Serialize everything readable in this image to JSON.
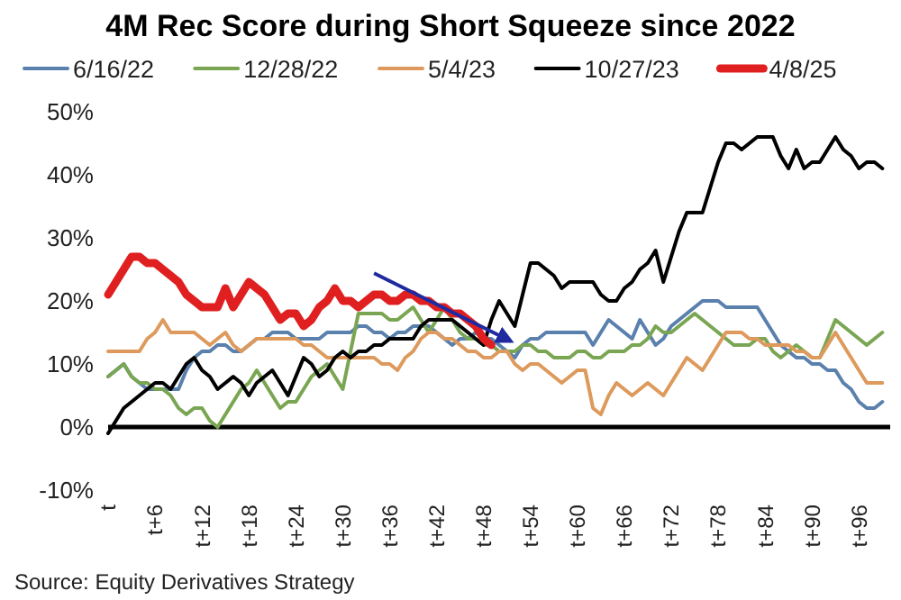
{
  "chart_data": {
    "type": "line",
    "title": "4M Rec Score during Short Squeeze since 2022",
    "annotations": [
      "Source: Equity Derivatives Strategy"
    ],
    "legend": "top",
    "grid": false,
    "ref_lines": [
      {
        "axis": "y",
        "value": 0,
        "color": "#000000"
      }
    ],
    "categories": [
      "t",
      null,
      null,
      null,
      null,
      null,
      "t+6",
      null,
      null,
      null,
      null,
      null,
      "t+12",
      null,
      null,
      null,
      null,
      null,
      "t+18",
      null,
      null,
      null,
      null,
      null,
      "t+24",
      null,
      null,
      null,
      null,
      null,
      "t+30",
      null,
      null,
      null,
      null,
      null,
      "t+36",
      null,
      null,
      null,
      null,
      null,
      "t+42",
      null,
      null,
      null,
      null,
      null,
      "t+48",
      null,
      null,
      null,
      null,
      null,
      "t+54",
      null,
      null,
      null,
      null,
      null,
      "t+60",
      null,
      null,
      null,
      null,
      null,
      "t+66",
      null,
      null,
      null,
      null,
      null,
      "t+72",
      null,
      null,
      null,
      null,
      null,
      "t+78",
      null,
      null,
      null,
      null,
      null,
      "t+84",
      null,
      null,
      null,
      null,
      null,
      "t+90",
      null,
      null,
      null,
      null,
      null,
      "t+96",
      null,
      null,
      null
    ],
    "ylim": [
      -10,
      50
    ],
    "yticks": [
      {
        "value": -10,
        "label": "-10%"
      },
      {
        "value": 0,
        "label": "0%"
      },
      {
        "value": 10,
        "label": "10%"
      },
      {
        "value": 20,
        "label": "20%"
      },
      {
        "value": 30,
        "label": "30%"
      },
      {
        "value": 40,
        "label": "40%"
      },
      {
        "value": 50,
        "label": "50%"
      }
    ],
    "series": [
      {
        "name": "6/16/22",
        "color": "#5a80ad",
        "values": [
          8,
          9,
          10,
          8,
          7,
          6,
          6,
          6,
          6,
          6,
          9,
          11,
          12,
          12,
          13,
          13,
          12,
          12,
          13,
          14,
          14,
          15,
          15,
          15,
          14,
          14,
          14,
          14,
          15,
          15,
          15,
          15,
          16,
          16,
          15,
          15,
          14,
          15,
          15,
          16,
          16,
          16,
          15,
          14,
          13,
          14,
          14,
          15,
          14,
          14,
          13,
          12,
          11,
          13,
          14,
          14,
          15,
          15,
          15,
          15,
          15,
          15,
          13,
          15,
          17,
          16,
          15,
          14,
          17,
          15,
          13,
          14,
          16,
          17,
          18,
          19,
          20,
          20,
          20,
          19,
          19,
          19,
          19,
          19,
          17,
          15,
          13,
          12,
          11,
          11,
          10,
          10,
          9,
          9,
          7,
          6,
          4,
          3,
          3,
          4
        ]
      },
      {
        "name": "12/28/22",
        "color": "#7aa653",
        "values": [
          8,
          9,
          10,
          8,
          7,
          7,
          6,
          6,
          5,
          3,
          2,
          3,
          3,
          1,
          0,
          2,
          4,
          6,
          7,
          9,
          7,
          5,
          3,
          4,
          4,
          6,
          8,
          9,
          10,
          8,
          6,
          12,
          18,
          18,
          18,
          18,
          17,
          17,
          18,
          19,
          17,
          15,
          17,
          19,
          17,
          15,
          14,
          14,
          13,
          13,
          12,
          12,
          12,
          13,
          13,
          12,
          12,
          11,
          11,
          11,
          12,
          12,
          11,
          11,
          12,
          12,
          12,
          13,
          13,
          14,
          16,
          15,
          15,
          16,
          17,
          18,
          17,
          16,
          15,
          14,
          13,
          13,
          13,
          14,
          14,
          12,
          11,
          12,
          13,
          12,
          11,
          11,
          14,
          17,
          16,
          15,
          14,
          13,
          14,
          15
        ]
      },
      {
        "name": "5/4/23",
        "color": "#dd9a5c",
        "values": [
          12,
          12,
          12,
          12,
          12,
          14,
          15,
          17,
          15,
          15,
          15,
          15,
          14,
          13,
          14,
          15,
          13,
          12,
          13,
          14,
          14,
          14,
          14,
          14,
          14,
          13,
          13,
          12,
          11,
          11,
          11,
          11,
          11,
          11,
          11,
          10,
          10,
          9,
          11,
          12,
          14,
          15,
          15,
          14,
          14,
          13,
          12,
          12,
          11,
          11,
          12,
          12,
          10,
          9,
          10,
          10,
          9,
          8,
          7,
          8,
          9,
          9,
          3,
          2,
          5,
          7,
          6,
          5,
          6,
          7,
          6,
          5,
          7,
          9,
          11,
          10,
          9,
          11,
          13,
          15,
          15,
          15,
          14,
          14,
          13,
          13,
          13,
          13,
          12,
          12,
          11,
          11,
          13,
          15,
          13,
          11,
          9,
          7,
          7,
          7
        ]
      },
      {
        "name": "10/27/23",
        "color": "#000000",
        "values": [
          -1,
          1,
          3,
          4,
          5,
          6,
          7,
          7,
          6,
          8,
          10,
          11,
          9,
          8,
          6,
          7,
          8,
          7,
          5,
          7,
          8,
          9,
          7,
          5,
          8,
          11,
          10,
          8,
          9,
          11,
          12,
          11,
          12,
          12,
          13,
          13,
          14,
          14,
          14,
          14,
          16,
          17,
          17,
          17,
          17,
          16,
          15,
          14,
          13,
          17,
          20,
          18,
          16,
          21,
          26,
          26,
          25,
          24,
          22,
          23,
          23,
          23,
          23,
          21,
          20,
          20,
          22,
          23,
          25,
          26,
          28,
          23,
          27,
          31,
          34,
          34,
          34,
          38,
          42,
          45,
          45,
          44,
          45,
          46,
          46,
          46,
          43,
          41,
          44,
          41,
          42,
          42,
          44,
          46,
          44,
          43,
          41,
          42,
          42,
          41
        ]
      },
      {
        "name": "4/8/25",
        "color": "#e02020",
        "values": [
          21,
          23,
          25,
          27,
          27,
          26,
          26,
          25,
          24,
          23,
          21,
          20,
          19,
          19,
          19,
          22,
          19,
          21,
          23,
          22,
          21,
          19,
          17,
          18,
          18,
          16,
          17,
          19,
          20,
          22,
          20,
          20,
          19,
          20,
          21,
          21,
          20,
          20,
          21,
          21,
          20,
          20,
          19,
          19,
          18,
          18,
          17,
          16,
          14,
          13,
          null,
          null,
          null,
          null,
          null,
          null,
          null,
          null,
          null,
          null,
          null,
          null,
          null,
          null,
          null,
          null,
          null,
          null,
          null,
          null,
          null,
          null,
          null,
          null,
          null,
          null,
          null,
          null,
          null,
          null,
          null,
          null,
          null,
          null,
          null,
          null,
          null,
          null,
          null,
          null,
          null,
          null,
          null,
          null,
          null,
          null,
          null,
          null,
          null,
          null
        ]
      }
    ]
  }
}
